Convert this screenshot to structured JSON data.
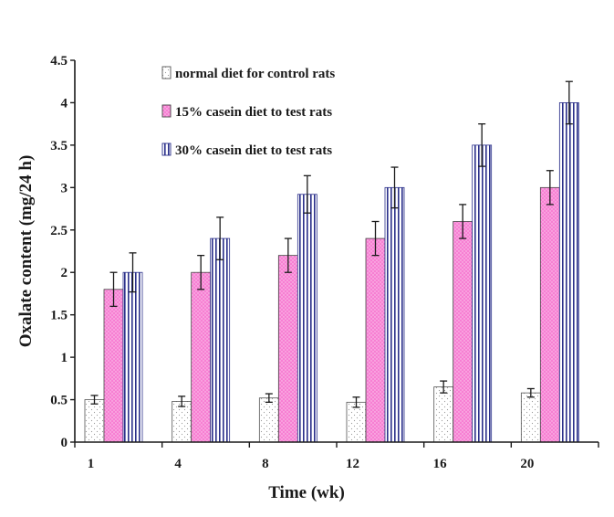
{
  "chart_data": {
    "type": "bar",
    "title": "",
    "xlabel": "Time (wk)",
    "ylabel": "Oxalate content (mg/24 h)",
    "ylim": [
      0,
      4.5
    ],
    "yticks": [
      "0",
      "0.5",
      "1",
      "1.5",
      "2",
      "2.5",
      "3",
      "3.5",
      "4",
      "4.5"
    ],
    "categories": [
      "1",
      "4",
      "8",
      "12",
      "16",
      "20"
    ],
    "legend_position": "top-center",
    "series": [
      {
        "name": "normal diet for control rats",
        "values": [
          0.5,
          0.48,
          0.52,
          0.47,
          0.65,
          0.58
        ],
        "errors": [
          0.05,
          0.06,
          0.05,
          0.06,
          0.07,
          0.05
        ],
        "pattern": "dots",
        "color": "#ffffff"
      },
      {
        "name": "15% casein diet to test rats",
        "values": [
          1.8,
          2.0,
          2.2,
          2.4,
          2.6,
          3.0
        ],
        "errors": [
          0.2,
          0.2,
          0.2,
          0.2,
          0.2,
          0.2
        ],
        "pattern": "pink-dots",
        "color": "#f77fd3"
      },
      {
        "name": "30% casein diet to test rats",
        "values": [
          2.0,
          2.4,
          2.92,
          3.0,
          3.5,
          4.0
        ],
        "errors": [
          0.23,
          0.25,
          0.22,
          0.24,
          0.25,
          0.25
        ],
        "pattern": "vertical-stripes",
        "color": "#2a2f8a"
      }
    ]
  }
}
